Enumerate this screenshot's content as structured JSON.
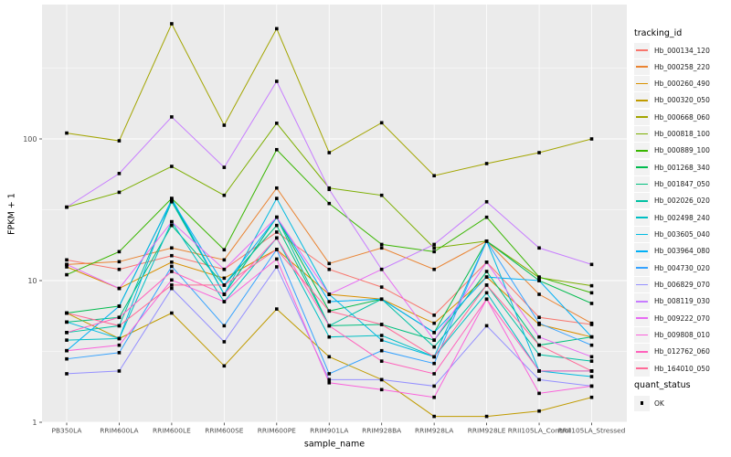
{
  "y_axis": {
    "title": "FPKM + 1",
    "scale": "log10"
  },
  "x_axis": {
    "title": "sample_name"
  },
  "legend": {
    "tracking_title": "tracking_id",
    "quant_title": "quant_status",
    "quant_item": "OK"
  },
  "colors": {
    "panel": "#EBEBEB",
    "grid": "#FFFFFF",
    "marker": "#000000",
    "tick_label": "#4D4D4D",
    "axis_title": "#000000"
  },
  "chart_data": {
    "type": "line",
    "title": "",
    "xlabel": "sample_name",
    "ylabel": "FPKM + 1",
    "y_scale": "log10",
    "y_ticks": [
      1,
      10,
      100
    ],
    "y_minor_ticks": [
      3.1623,
      31.623,
      316.23
    ],
    "ylim": [
      1,
      900
    ],
    "grid": true,
    "legend_position": "right",
    "legend_title": "tracking_id",
    "point_marker": "black filled square (quant_status = OK)",
    "categories": [
      "PB350LA",
      "RRIM600LA",
      "RRIM600LE",
      "RRIM600SE",
      "RRIM600PE",
      "RRIM901LA",
      "RRIM928BA",
      "RRIM928LA",
      "RRIM928LE",
      "RRII105LA_Control",
      "RRII105LA_Stressed"
    ],
    "series": [
      {
        "name": "Hb_000134_120",
        "color": "#F8766D",
        "values": [
          14,
          12,
          15,
          12,
          22,
          12,
          9,
          5.7,
          13.5,
          5.5,
          4.9
        ]
      },
      {
        "name": "Hb_000258_220",
        "color": "#EA8331",
        "values": [
          13,
          13.6,
          17,
          14,
          45,
          13.2,
          17,
          12,
          19,
          8,
          5
        ]
      },
      {
        "name": "Hb_000260_490",
        "color": "#D89000",
        "values": [
          12.5,
          8.8,
          13.5,
          10.4,
          16.6,
          8,
          7.4,
          5,
          10.6,
          4.9,
          4
        ]
      },
      {
        "name": "Hb_000320_050",
        "color": "#C09B00",
        "values": [
          5.9,
          3.9,
          5.9,
          2.5,
          6.3,
          2.9,
          2,
          1.1,
          1.1,
          1.2,
          1.5
        ]
      },
      {
        "name": "Hb_000668_060",
        "color": "#A3A500",
        "values": [
          110,
          97,
          650,
          125,
          600,
          80,
          130,
          55,
          67,
          80,
          100
        ]
      },
      {
        "name": "Hb_000818_100",
        "color": "#7CAE00",
        "values": [
          33,
          42,
          64,
          40,
          129,
          45,
          40,
          17,
          19,
          10.5,
          9.2
        ]
      },
      {
        "name": "Hb_000889_100",
        "color": "#39B600",
        "values": [
          11,
          16,
          38,
          16.5,
          84,
          35,
          18,
          16,
          28,
          10.6,
          8.2
        ]
      },
      {
        "name": "Hb_001268_340",
        "color": "#00BB4E",
        "values": [
          5.9,
          6.6,
          37,
          8,
          28,
          6.1,
          7.4,
          4.3,
          19,
          10,
          6.9
        ]
      },
      {
        "name": "Hb_001847_050",
        "color": "#00BF7D",
        "values": [
          5.1,
          5.5,
          24.5,
          9.3,
          24.5,
          4.8,
          4.9,
          3.8,
          11.6,
          3.5,
          4
        ]
      },
      {
        "name": "Hb_002026_020",
        "color": "#00C1A3",
        "values": [
          4.3,
          4.8,
          36,
          8,
          28,
          4.8,
          7.4,
          3.4,
          9.3,
          3,
          2.7
        ]
      },
      {
        "name": "Hb_002498_240",
        "color": "#00BFC4",
        "values": [
          3.8,
          3.9,
          26,
          7.1,
          20,
          4,
          4.1,
          2.9,
          8.2,
          2.3,
          2.3
        ]
      },
      {
        "name": "Hb_003605_040",
        "color": "#00BAE0",
        "values": [
          5.1,
          3.9,
          38,
          8,
          38,
          8,
          3.8,
          2.9,
          19,
          2.3,
          2.1
        ]
      },
      {
        "name": "Hb_003964_080",
        "color": "#00B0F6",
        "values": [
          3.2,
          6.6,
          37,
          9.3,
          28,
          7.1,
          7.4,
          4.3,
          10.6,
          10,
          4
        ]
      },
      {
        "name": "Hb_004730_020",
        "color": "#35A2FF",
        "values": [
          2.8,
          3.1,
          12.6,
          4.8,
          16.6,
          2.2,
          3.2,
          2.6,
          19,
          5,
          3.5
        ]
      },
      {
        "name": "Hb_006829_070",
        "color": "#9590FF",
        "values": [
          2.2,
          2.3,
          8.8,
          3.7,
          12.5,
          2,
          2,
          1.8,
          4.8,
          2,
          1.8
        ]
      },
      {
        "name": "Hb_008119_030",
        "color": "#C77CFF",
        "values": [
          33,
          57,
          143,
          63,
          255,
          44,
          12,
          18,
          36,
          17,
          13
        ]
      },
      {
        "name": "Hb_009222_070",
        "color": "#E76BF3",
        "values": [
          13,
          8.8,
          26,
          12,
          28,
          8,
          12,
          3.8,
          13.5,
          4,
          2.9
        ]
      },
      {
        "name": "Hb_009808_010",
        "color": "#FA62DB",
        "values": [
          3.2,
          3.5,
          10.1,
          7.1,
          14.2,
          1.9,
          1.7,
          1.5,
          7.4,
          1.6,
          1.8
        ]
      },
      {
        "name": "Hb_012762_060",
        "color": "#FF62BC",
        "values": [
          4.3,
          5.5,
          11.6,
          8,
          20,
          4.8,
          2.7,
          2.2,
          7.4,
          2.3,
          2.3
        ]
      },
      {
        "name": "Hb_164010_050",
        "color": "#FF6A98",
        "values": [
          5.9,
          4.8,
          9.3,
          9.3,
          16.6,
          6.1,
          4.9,
          2.9,
          9.3,
          3.5,
          2.3
        ]
      }
    ]
  }
}
